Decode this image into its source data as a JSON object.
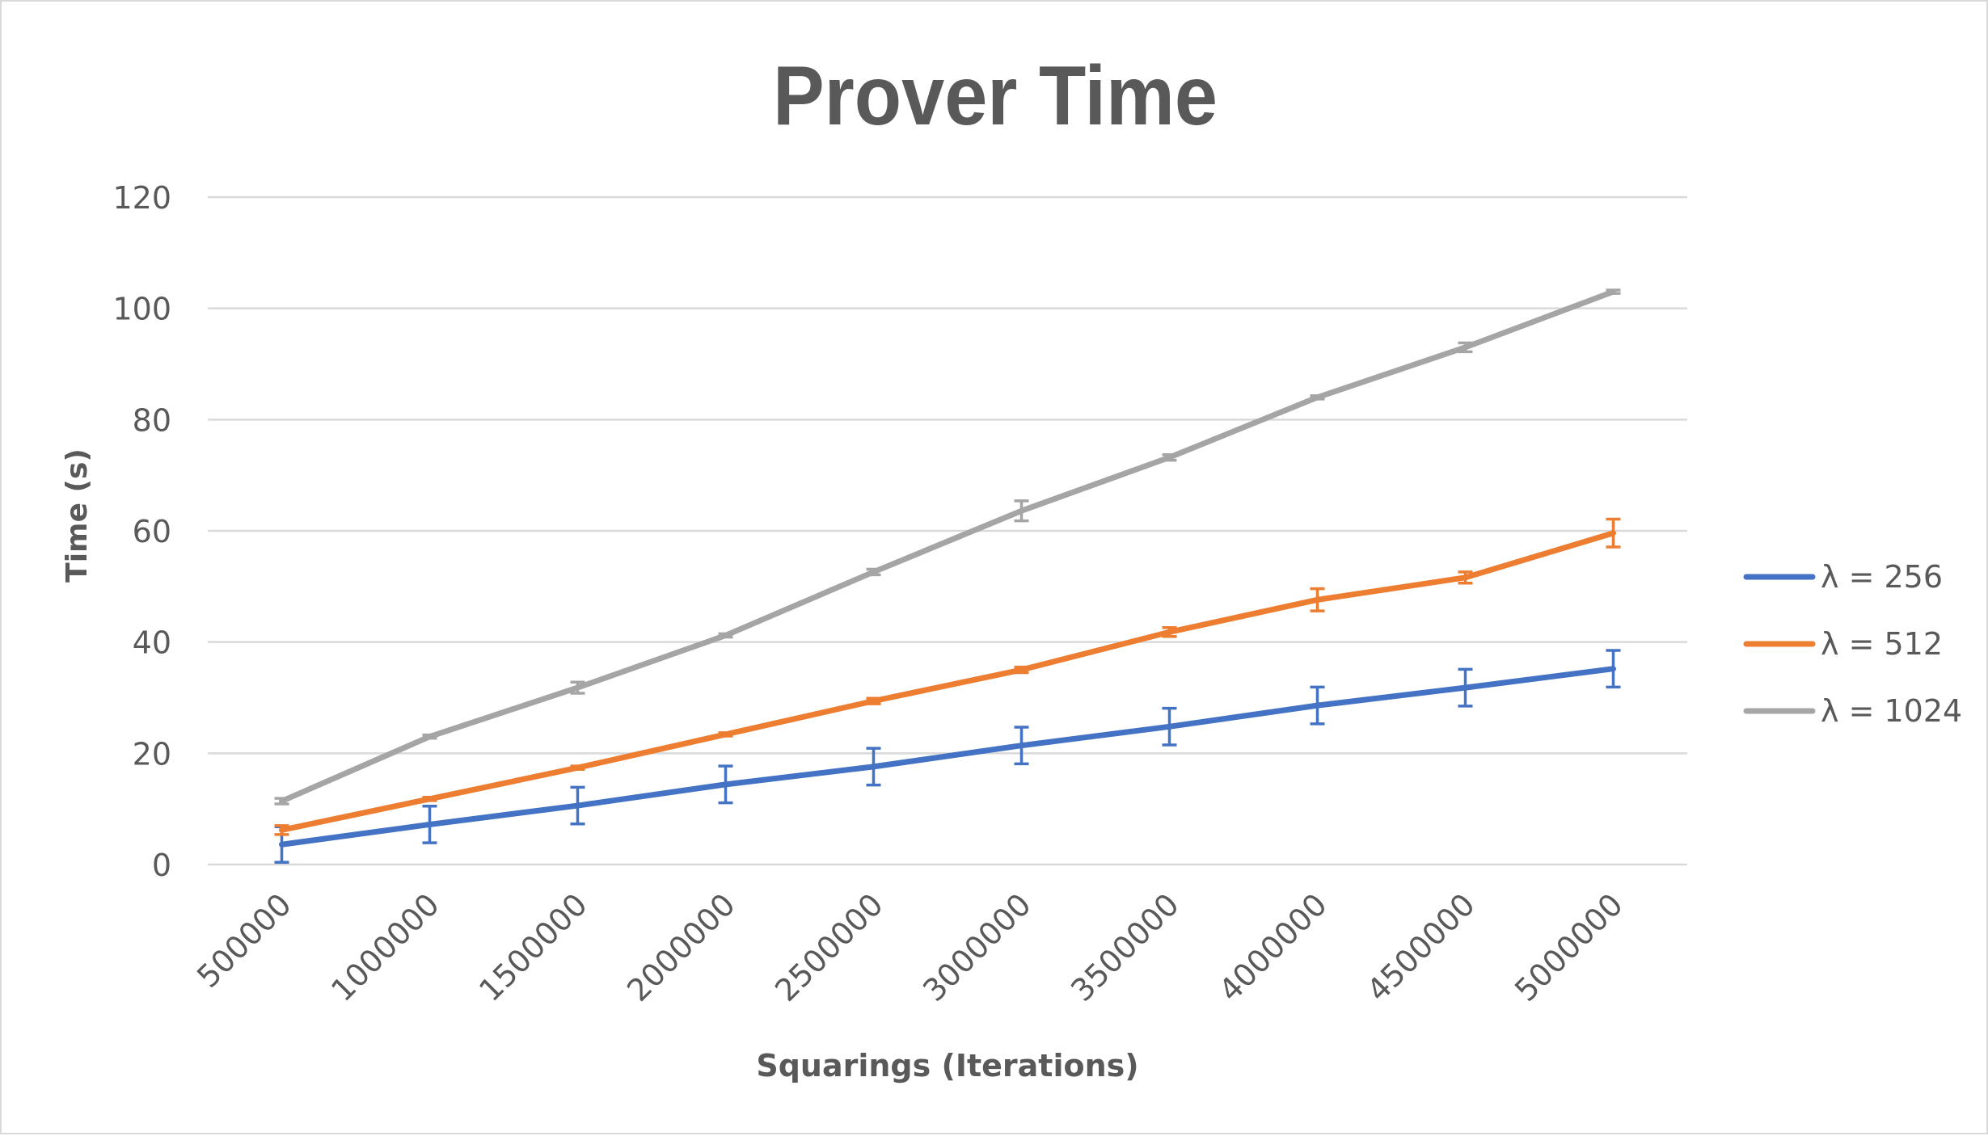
{
  "chart_data": {
    "type": "line",
    "title": "Prover Time",
    "xlabel": "Squarings (Iterations)",
    "ylabel": "Time (s)",
    "ylim": [
      0,
      120
    ],
    "yticks": [
      0,
      20,
      40,
      60,
      80,
      100,
      120
    ],
    "categories": [
      "500000",
      "1000000",
      "1500000",
      "2000000",
      "2500000",
      "3000000",
      "3500000",
      "4000000",
      "4500000",
      "5000000"
    ],
    "grid": true,
    "legend_position": "right",
    "error_bars": true,
    "series": [
      {
        "name": "λ = 256",
        "color": "#4472c4",
        "values": [
          3.6,
          7.2,
          10.6,
          14.4,
          17.6,
          21.4,
          24.8,
          28.6,
          31.8,
          35.2
        ],
        "errors": [
          3.2,
          3.3,
          3.3,
          3.3,
          3.3,
          3.3,
          3.3,
          3.3,
          3.3,
          3.3
        ]
      },
      {
        "name": "λ = 512",
        "color": "#ed7d31",
        "values": [
          6.2,
          11.8,
          17.4,
          23.4,
          29.4,
          35.0,
          41.8,
          47.6,
          51.6,
          59.6
        ],
        "errors": [
          0.8,
          0.3,
          0.3,
          0.3,
          0.5,
          0.5,
          0.8,
          2.0,
          1.0,
          2.5
        ]
      },
      {
        "name": "λ = 1024",
        "color": "#a5a5a5",
        "values": [
          11.4,
          23.0,
          31.8,
          41.2,
          52.6,
          63.6,
          73.2,
          84.0,
          93.0,
          103.0
        ],
        "errors": [
          0.5,
          0.3,
          1.0,
          0.3,
          0.5,
          1.8,
          0.5,
          0.3,
          0.8,
          0.3
        ]
      }
    ]
  }
}
